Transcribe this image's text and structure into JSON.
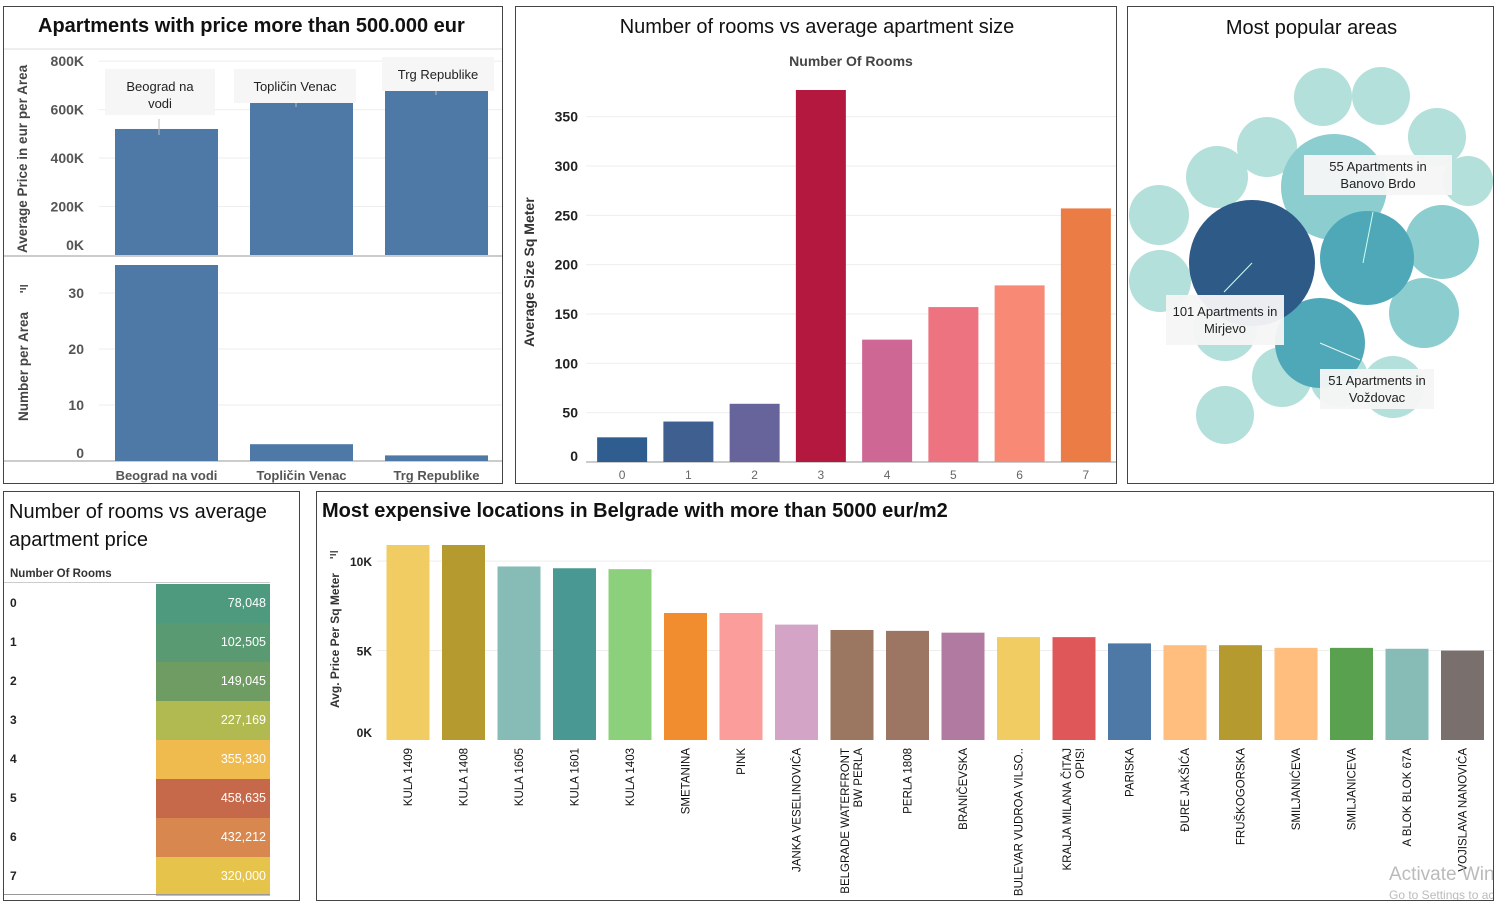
{
  "panel1": {
    "title": "Apartments with price more than 500.000 eur",
    "top_ylabel": "Average Price in eur per Area",
    "bottom_ylabel": "Number per Area",
    "sort_icon": "sort-descending-icon",
    "top_ticks": [
      "800K",
      "600K",
      "400K",
      "200K",
      "0K"
    ],
    "bottom_ticks": [
      "30",
      "20",
      "10",
      "0"
    ],
    "annotations": [
      "Beograd na vodi",
      "Topličin Venac",
      "Trg Republike"
    ]
  },
  "panel2": {
    "title": "Number of rooms vs average apartment size",
    "header": "Number Of Rooms",
    "ylabel": "Average  Size Sq Meter",
    "ticks": [
      "350",
      "300",
      "250",
      "200",
      "150",
      "100",
      "50",
      "0"
    ]
  },
  "panel3": {
    "title": "Most popular areas",
    "labels": {
      "banovo": "55 Apartments in Banovo Brdo",
      "mirjevo": "101 Apartments in Mirjevo",
      "vozdovac": "51 Apartments in Voždovac"
    },
    "colors": {
      "largest": "#2e5a87",
      "large": "#4fa8b8",
      "medium": "#8ccdd0",
      "small": "#b3e0da"
    }
  },
  "panel4": {
    "title": "Number of rooms vs average apartment price",
    "header": "Number Of Rooms",
    "rows": [
      {
        "rooms": "0",
        "price": "78,048",
        "color": "#4e9a7e"
      },
      {
        "rooms": "1",
        "price": "102,505",
        "color": "#5a9a72"
      },
      {
        "rooms": "2",
        "price": "149,045",
        "color": "#6e9c62"
      },
      {
        "rooms": "3",
        "price": "227,169",
        "color": "#b0ba50"
      },
      {
        "rooms": "4",
        "price": "355,330",
        "color": "#f0bb4e"
      },
      {
        "rooms": "5",
        "price": "458,635",
        "color": "#c6684a"
      },
      {
        "rooms": "6",
        "price": "432,212",
        "color": "#d8874e"
      },
      {
        "rooms": "7",
        "price": "320,000",
        "color": "#e6c44c"
      }
    ]
  },
  "panel5": {
    "title": "Most expensive locations in Belgrade with more than 5000 eur/m2",
    "ylabel": "Avg. Price Per Sq Meter",
    "ticks": [
      "10K",
      "5K",
      "0K"
    ]
  },
  "watermark": {
    "line1": "Activate Windows",
    "line2": "Go to Settings to activate Windows."
  },
  "chart_data": [
    {
      "type": "bar",
      "title": "Apartments with price more than 500.000 eur",
      "categories": [
        "Beograd na vodi",
        "Topličin Venac",
        "Trg Republike"
      ],
      "series": [
        {
          "name": "Average Price in eur per Area",
          "values": [
            520000,
            645000,
            695000
          ]
        },
        {
          "name": "Number per Area",
          "values": [
            35,
            3,
            1
          ]
        }
      ],
      "ylim_top": [
        0,
        850000
      ],
      "ylim_bottom": [
        0,
        35
      ]
    },
    {
      "type": "bar",
      "title": "Number of rooms vs average apartment size",
      "xlabel": "Number Of Rooms",
      "ylabel": "Average  Size Sq Meter",
      "categories": [
        "0",
        "1",
        "2",
        "3",
        "4",
        "5",
        "6",
        "7"
      ],
      "values": [
        25,
        41,
        59,
        377,
        124,
        157,
        179,
        257
      ],
      "colors": [
        "#2f5d8f",
        "#3f5f91",
        "#66649a",
        "#b5183f",
        "#cf6795",
        "#ee7380",
        "#f88a75",
        "#ec7c45"
      ],
      "ylim": [
        0,
        385
      ]
    },
    {
      "type": "bubble",
      "title": "Most popular areas",
      "values": [
        101,
        55,
        51
      ]
    },
    {
      "type": "table",
      "title": "Number of rooms vs average apartment price",
      "categories": [
        "0",
        "1",
        "2",
        "3",
        "4",
        "5",
        "6",
        "7"
      ],
      "values": [
        78048,
        102505,
        149045,
        227169,
        355330,
        458635,
        432212,
        320000
      ]
    },
    {
      "type": "bar",
      "title": "Most expensive locations in Belgrade with more than 5000 eur/m2",
      "ylabel": "Avg. Price Per Sq Meter",
      "categories": [
        "KULA 1409",
        "KULA 1408",
        "KULA 1605",
        "KULA 1601",
        "KULA 1403",
        "SMETANINA",
        "PINK",
        "JANKA VESELINOVIĆA",
        "BELGRADE WATERFRONT BW PERLA",
        "PERLA 1808",
        "BRANIČEVSKA",
        "BULEVAR VUDROA VILSO..",
        "KRALJA MILANA ČITAJ OPIS!",
        "PARISKA",
        "ĐURE JAKŠIĆA",
        "FRUŠKOGORSKA",
        "SMILJANIĆEVA",
        "SMILJANICEVA",
        "A BLOK  BLOK 67A",
        "VOJISLAVA NANOVIĆA"
      ],
      "values": [
        10900,
        10900,
        9700,
        9600,
        9550,
        7100,
        7100,
        6450,
        6150,
        6100,
        6000,
        5750,
        5750,
        5400,
        5300,
        5300,
        5150,
        5150,
        5100,
        5000
      ],
      "colors": [
        "#f0cc62",
        "#b59a30",
        "#86bcb5",
        "#4a9893",
        "#8dd07b",
        "#f18d2e",
        "#fb9d9a",
        "#d3a4c6",
        "#9b7660",
        "#9c7663",
        "#b07aa1",
        "#f0cc62",
        "#e05759",
        "#4e78a6",
        "#ffbe7d",
        "#b59a30",
        "#ffbe7d",
        "#59a14e",
        "#86bcb5",
        "#79706e"
      ],
      "ylim": [
        0,
        11000
      ]
    }
  ]
}
